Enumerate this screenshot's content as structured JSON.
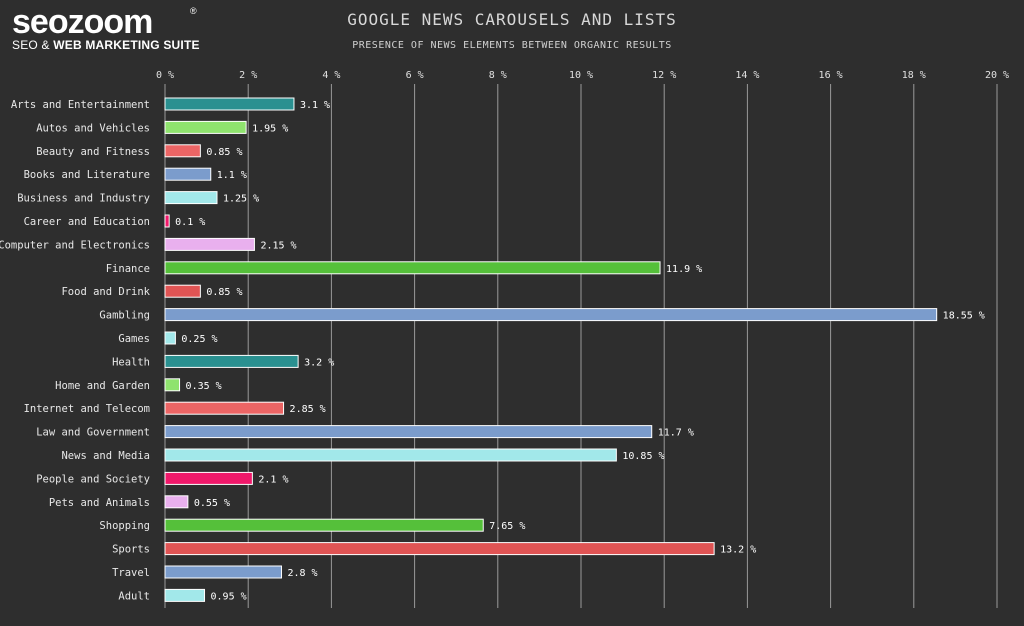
{
  "brand": {
    "logo_word": "seozoom",
    "logo_reg": "®",
    "logo_sub_plain": "SEO & ",
    "logo_sub_bold": "WEB MARKETING SUITE"
  },
  "chart_data": {
    "type": "bar",
    "orientation": "horizontal",
    "title": "GOOGLE NEWS CAROUSELS AND LISTS",
    "subtitle": "PRESENCE OF NEWS ELEMENTS BETWEEN ORGANIC RESULTS",
    "xlim": [
      0,
      20
    ],
    "x_ticks": [
      0,
      2,
      4,
      6,
      8,
      10,
      12,
      14,
      16,
      18,
      20
    ],
    "x_tick_labels": [
      "0 %",
      "2 %",
      "4 %",
      "6 %",
      "8 %",
      "10 %",
      "12 %",
      "14 %",
      "16 %",
      "18 %",
      "20 %"
    ],
    "grid": "vertical",
    "categories": [
      "Arts and Entertainment",
      "Autos and Vehicles",
      "Beauty and Fitness",
      "Books and Literature",
      "Business and Industry",
      "Career and Education",
      "Computer and Electronics",
      "Finance",
      "Food and Drink",
      "Gambling",
      "Games",
      "Health",
      "Home and Garden",
      "Internet and Telecom",
      "Law and Government",
      "News and Media",
      "People and Society",
      "Pets and Animals",
      "Shopping",
      "Sports",
      "Travel",
      "Adult"
    ],
    "values": [
      3.1,
      1.95,
      0.85,
      1.1,
      1.25,
      0.1,
      2.15,
      11.9,
      0.85,
      18.55,
      0.25,
      3.2,
      0.35,
      2.85,
      11.7,
      10.85,
      2.1,
      0.55,
      7.65,
      13.2,
      2.8,
      0.95
    ],
    "value_labels": [
      "3.1 %",
      "1.95 %",
      "0.85 %",
      "1.1 %",
      "1.25 %",
      "0.1 %",
      "2.15 %",
      "11.9 %",
      "0.85 %",
      "18.55 %",
      "0.25 %",
      "3.2 %",
      "0.35 %",
      "2.85 %",
      "11.7 %",
      "10.85 %",
      "2.1 %",
      "0.55 %",
      "7.65 %",
      "13.2 %",
      "2.8 %",
      "0.95 %"
    ],
    "colors": [
      "#2a9090",
      "#8fe36e",
      "#ec6565",
      "#7b9ccc",
      "#a2e8ea",
      "#f0186a",
      "#e9b0ee",
      "#55c03a",
      "#e05454",
      "#7b9ccc",
      "#a2e8ea",
      "#2a9090",
      "#8fe36e",
      "#ec6565",
      "#7b9ccc",
      "#a2e8ea",
      "#f0186a",
      "#e9b0ee",
      "#55c03a",
      "#e05454",
      "#7b9ccc",
      "#a2e8ea"
    ],
    "bar_border_color": "#ffffff",
    "grid_color": "#9a9a9a"
  }
}
